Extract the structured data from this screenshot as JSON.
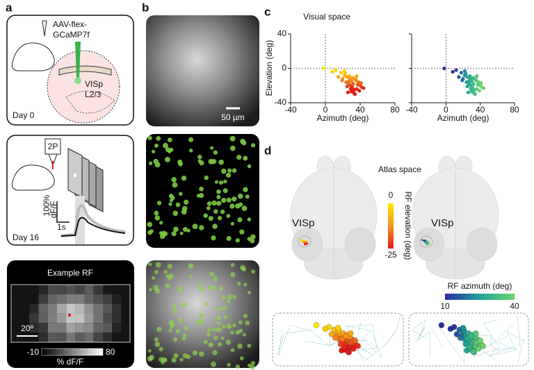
{
  "panel_labels": [
    "a",
    "b",
    "c",
    "d"
  ],
  "panel_a": {
    "construct": [
      "AAV-flex-",
      "GCaMP7f"
    ],
    "region": [
      "VISp",
      "L2/3"
    ],
    "day0": "Day 0",
    "microscope": "2P",
    "scale_y": [
      "100%",
      "dF/F"
    ],
    "scale_x": "1s",
    "day16": "Day 16",
    "rf_title": "Example RF",
    "rf_scale": "20º",
    "rf_colorbar": {
      "ticks": [
        -10,
        80
      ],
      "label": "% dF/F"
    }
  },
  "panel_b": {
    "scalebar": "50 µm"
  },
  "chart_data": {
    "type": "scatter",
    "title": "Visual space",
    "xlabel": "Azimuth (deg)",
    "ylabel": "Elevation (deg)",
    "xlim": [
      -40,
      80
    ],
    "ylim": [
      -40,
      40
    ],
    "xticks": [
      -40,
      0,
      40,
      80
    ],
    "yticks": [
      -40,
      0,
      40
    ],
    "x": [
      18,
      22,
      25,
      28,
      30,
      32,
      35,
      38,
      40,
      42,
      20,
      24,
      27,
      29,
      31,
      33,
      36,
      39,
      26,
      30,
      34,
      37,
      23,
      28,
      32,
      35,
      41,
      44,
      19,
      25,
      29,
      33,
      15,
      22,
      12,
      8,
      27,
      31,
      36,
      -2
    ],
    "y": [
      -5,
      -8,
      -10,
      -12,
      -15,
      -18,
      -14,
      -16,
      -20,
      -22,
      -12,
      -16,
      -18,
      -20,
      -22,
      -25,
      -24,
      -26,
      -28,
      -27,
      -30,
      -19,
      -6,
      -9,
      -11,
      -13,
      -17,
      -23,
      -14,
      -21,
      -24,
      -29,
      -10,
      -3,
      -2,
      -4,
      -15,
      -12,
      -9,
      0
    ]
  },
  "panel_d": {
    "title": "Atlas space",
    "region": "VISp",
    "elevation_colorbar": {
      "label": "RF elevation (deg)",
      "ticks": [
        0,
        -25
      ]
    },
    "azimuth_colorbar": {
      "label": "RF azimuth (deg)",
      "ticks": [
        10,
        40
      ]
    }
  }
}
